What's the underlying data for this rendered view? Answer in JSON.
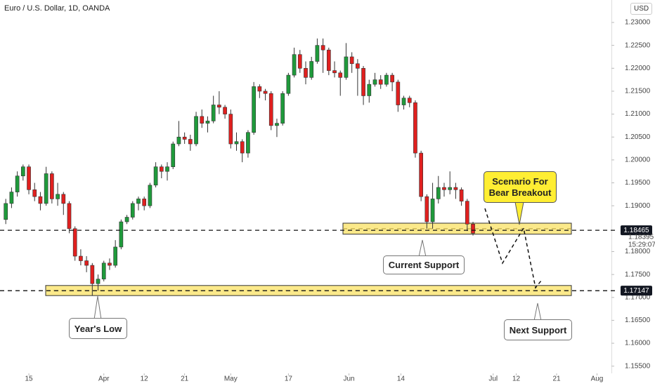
{
  "chart_data": {
    "type": "candlestick",
    "title": "Euro / U.S. Dollar, 1D, OANDA",
    "currency": "USD",
    "up_color": "#1f9a3b",
    "down_color": "#e0201f",
    "open": [
      1.187,
      1.1905,
      1.193,
      1.1965,
      1.1985,
      1.1935,
      1.192,
      1.1905,
      1.197,
      1.1915,
      1.1925,
      1.1905,
      1.185,
      1.179,
      1.178,
      1.177,
      1.173,
      1.174,
      1.1775,
      1.177,
      1.181,
      1.1865,
      1.1875,
      1.1905,
      1.1915,
      1.19,
      1.1945,
      1.1985,
      1.1975,
      1.1985,
      1.2035,
      1.205,
      1.2045,
      1.2035,
      1.2095,
      1.208,
      1.2085,
      1.212,
      1.2115,
      1.21,
      1.2035,
      1.204,
      1.2015,
      1.206,
      1.216,
      1.215,
      1.2145,
      1.2075,
      1.208,
      1.2145,
      1.2185,
      1.223,
      1.22,
      1.218,
      1.2215,
      1.225,
      1.224,
      1.2195,
      1.219,
      1.218,
      1.2225,
      1.221,
      1.22,
      1.214,
      1.2165,
      1.2175,
      1.2165,
      1.2185,
      1.217,
      1.212,
      1.2135,
      1.2125,
      1.2015,
      1.192,
      1.1865,
      1.1915,
      1.194,
      1.1935,
      1.194,
      1.1935,
      1.191,
      1.186
    ],
    "high": [
      1.1915,
      1.194,
      1.1975,
      1.199,
      1.199,
      1.195,
      1.193,
      1.1985,
      1.1975,
      1.195,
      1.193,
      1.191,
      1.1855,
      1.1805,
      1.179,
      1.1775,
      1.175,
      1.178,
      1.1785,
      1.1825,
      1.187,
      1.188,
      1.191,
      1.192,
      1.192,
      1.195,
      1.1995,
      1.199,
      1.1995,
      1.204,
      1.2085,
      1.206,
      1.2055,
      1.2105,
      1.211,
      1.2095,
      1.214,
      1.215,
      1.212,
      1.211,
      1.206,
      1.2045,
      1.2065,
      1.217,
      1.2165,
      1.2155,
      1.215,
      1.209,
      1.215,
      1.219,
      1.2245,
      1.224,
      1.2215,
      1.2225,
      1.2265,
      1.2265,
      1.2245,
      1.2215,
      1.2195,
      1.2255,
      1.2235,
      1.222,
      1.2205,
      1.2175,
      1.219,
      1.2185,
      1.219,
      1.219,
      1.2175,
      1.214,
      1.214,
      1.213,
      1.202,
      1.1925,
      1.195,
      1.1965,
      1.195,
      1.1975,
      1.195,
      1.194,
      1.1915,
      1.1865
    ],
    "low": [
      1.186,
      1.1895,
      1.192,
      1.1955,
      1.1925,
      1.191,
      1.189,
      1.19,
      1.1905,
      1.19,
      1.188,
      1.184,
      1.178,
      1.177,
      1.1755,
      1.1704,
      1.1715,
      1.1735,
      1.176,
      1.1765,
      1.1805,
      1.186,
      1.187,
      1.189,
      1.189,
      1.1895,
      1.194,
      1.196,
      1.1955,
      1.198,
      1.203,
      1.2035,
      1.202,
      1.203,
      1.207,
      1.206,
      1.208,
      1.21,
      1.209,
      1.2025,
      1.202,
      1.1995,
      1.2005,
      1.2055,
      1.2135,
      1.213,
      1.2065,
      1.205,
      1.2075,
      1.214,
      1.218,
      1.219,
      1.2165,
      1.2175,
      1.221,
      1.219,
      1.2185,
      1.218,
      1.214,
      1.2175,
      1.219,
      1.214,
      1.212,
      1.2125,
      1.216,
      1.2155,
      1.216,
      1.215,
      1.2105,
      1.211,
      1.2115,
      1.2005,
      1.191,
      1.185,
      1.185,
      1.1905,
      1.192,
      1.1925,
      1.1915,
      1.19,
      1.1845,
      1.1835
    ],
    "close": [
      1.1905,
      1.193,
      1.1965,
      1.1985,
      1.1935,
      1.192,
      1.1905,
      1.197,
      1.1915,
      1.1925,
      1.1905,
      1.185,
      1.179,
      1.178,
      1.177,
      1.173,
      1.174,
      1.1775,
      1.177,
      1.181,
      1.1865,
      1.1875,
      1.1905,
      1.1915,
      1.19,
      1.1945,
      1.1985,
      1.1975,
      1.1985,
      1.2035,
      1.205,
      1.2045,
      1.2035,
      1.2095,
      1.208,
      1.2085,
      1.212,
      1.2115,
      1.21,
      1.2035,
      1.204,
      1.2015,
      1.206,
      1.216,
      1.215,
      1.2145,
      1.2075,
      1.208,
      1.2145,
      1.2185,
      1.223,
      1.22,
      1.218,
      1.2215,
      1.225,
      1.224,
      1.2195,
      1.219,
      1.218,
      1.2225,
      1.221,
      1.22,
      1.214,
      1.2165,
      1.2175,
      1.2165,
      1.2185,
      1.217,
      1.212,
      1.2135,
      1.2125,
      1.2015,
      1.192,
      1.1865,
      1.1915,
      1.194,
      1.1935,
      1.194,
      1.1935,
      1.191,
      1.186,
      1.184
    ],
    "xlim": [
      -1,
      105
    ],
    "xticks": [
      {
        "value": 4,
        "label": "15"
      },
      {
        "value": 17,
        "label": "Apr"
      },
      {
        "value": 24,
        "label": "12"
      },
      {
        "value": 31,
        "label": "21"
      },
      {
        "value": 39,
        "label": "May"
      },
      {
        "value": 49,
        "label": "17"
      },
      {
        "value": 59.5,
        "label": "Jun"
      },
      {
        "value": 68.5,
        "label": "14"
      },
      {
        "value": 84.5,
        "label": "Jul"
      },
      {
        "value": 88.5,
        "label": "12"
      },
      {
        "value": 95.5,
        "label": "21"
      },
      {
        "value": 102.5,
        "label": "Aug"
      }
    ],
    "ylim": [
      1.1522,
      1.2349
    ],
    "yticks": [
      {
        "value": 1.155,
        "label": "1.15500"
      },
      {
        "value": 1.16,
        "label": "1.16000"
      },
      {
        "value": 1.165,
        "label": "1.16500"
      },
      {
        "value": 1.17,
        "label": "1.17000"
      },
      {
        "value": 1.175,
        "label": "1.17500"
      },
      {
        "value": 1.18,
        "label": "1.18000"
      },
      {
        "value": 1.19,
        "label": "1.19000"
      },
      {
        "value": 1.195,
        "label": "1.19500"
      },
      {
        "value": 1.2,
        "label": "1.20000"
      },
      {
        "value": 1.205,
        "label": "1.20500"
      },
      {
        "value": 1.21,
        "label": "1.21000"
      },
      {
        "value": 1.215,
        "label": "1.21500"
      },
      {
        "value": 1.22,
        "label": "1.22000"
      },
      {
        "value": 1.225,
        "label": "1.22500"
      },
      {
        "value": 1.23,
        "label": "1.23000"
      }
    ],
    "price_lines": [
      {
        "value": 1.18465,
        "label": "1.18465"
      },
      {
        "value": 1.17147,
        "label": "1.17147"
      }
    ],
    "last_price": {
      "value": 1.18395,
      "label": "1.18395"
    },
    "countdown": "15:29:07",
    "zones": [
      {
        "low": 1.1838,
        "high": 1.1862
      },
      {
        "low": 1.1704,
        "high": 1.1726
      }
    ],
    "annotations": [
      "Scenario For Bear Breakout",
      "Current Support",
      "Year's Low",
      "Next Support"
    ]
  }
}
